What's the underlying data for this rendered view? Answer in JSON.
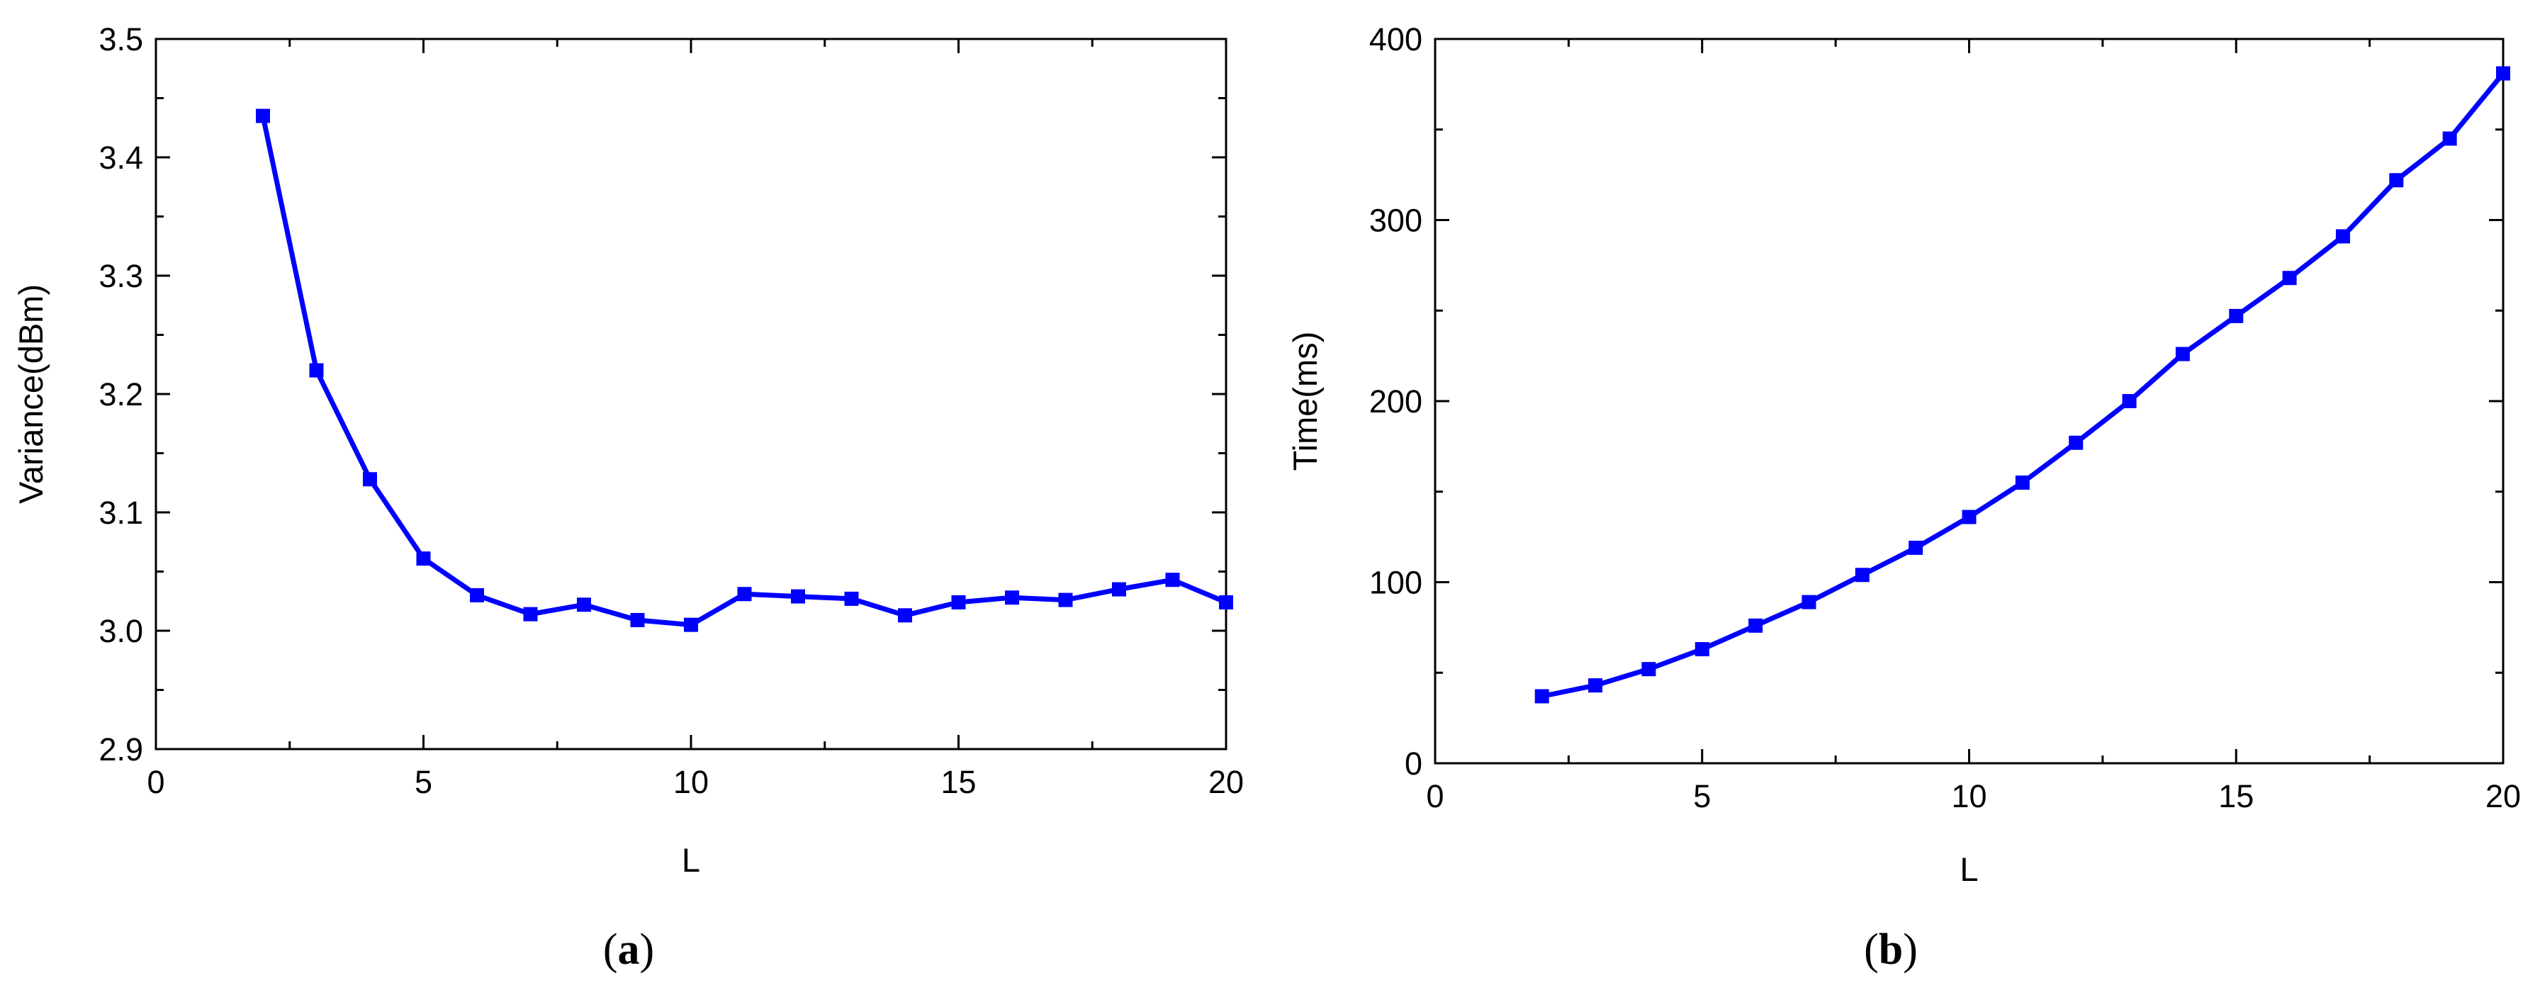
{
  "chart_data": [
    {
      "type": "line",
      "panel_label": "a",
      "title": "",
      "xlabel": "L",
      "ylabel": "Variance(dBm)",
      "xlim": [
        0,
        20
      ],
      "ylim": [
        2.9,
        3.5
      ],
      "xticks": [
        0,
        5,
        10,
        15,
        20
      ],
      "yticks": [
        "2.9",
        "3.0",
        "3.1",
        "3.2",
        "3.3",
        "3.4",
        "3.5"
      ],
      "grid": false,
      "color": "#0000ff",
      "marker": "square",
      "x": [
        2,
        3,
        4,
        5,
        6,
        7,
        8,
        9,
        10,
        11,
        12,
        13,
        14,
        15,
        16,
        17,
        18,
        19,
        20
      ],
      "y": [
        3.435,
        3.22,
        3.128,
        3.061,
        3.03,
        3.014,
        3.022,
        3.009,
        3.005,
        3.031,
        3.029,
        3.027,
        3.013,
        3.024,
        3.028,
        3.026,
        3.035,
        3.043,
        3.024
      ]
    },
    {
      "type": "line",
      "panel_label": "b",
      "title": "",
      "xlabel": "L",
      "ylabel": "Time(ms)",
      "xlim": [
        0,
        20
      ],
      "ylim": [
        0,
        400
      ],
      "xticks": [
        0,
        5,
        10,
        15,
        20
      ],
      "yticks": [
        "0",
        "100",
        "200",
        "300",
        "400"
      ],
      "grid": false,
      "color": "#0000ff",
      "marker": "square",
      "x": [
        2,
        3,
        4,
        5,
        6,
        7,
        8,
        9,
        10,
        11,
        12,
        13,
        14,
        15,
        16,
        17,
        18,
        19,
        20
      ],
      "y": [
        37,
        43,
        52,
        63,
        76,
        89,
        104,
        119,
        136,
        155,
        177,
        200,
        226,
        247,
        268,
        291,
        322,
        345,
        381
      ]
    }
  ]
}
